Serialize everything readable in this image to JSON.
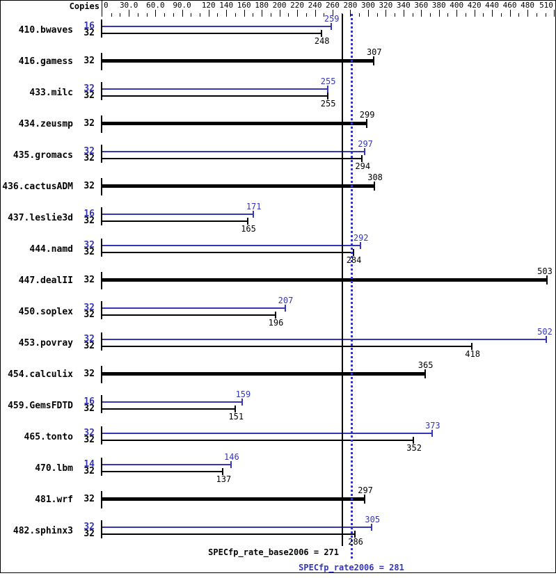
{
  "chart_data": {
    "type": "bar",
    "orientation": "horizontal",
    "copies_header": "Copies",
    "colors": {
      "peak": "#3535bb",
      "base": "#000000"
    },
    "axis": {
      "min": 0,
      "max": 510,
      "minor_tick_step": 10,
      "major_labels": [
        {
          "v": 0,
          "label": "0"
        },
        {
          "v": 30,
          "label": "30.0"
        },
        {
          "v": 60,
          "label": "60.0"
        },
        {
          "v": 90,
          "label": "90.0"
        },
        {
          "v": 120,
          "label": "120"
        },
        {
          "v": 140,
          "label": "140"
        },
        {
          "v": 160,
          "label": "160"
        },
        {
          "v": 180,
          "label": "180"
        },
        {
          "v": 200,
          "label": "200"
        },
        {
          "v": 220,
          "label": "220"
        },
        {
          "v": 240,
          "label": "240"
        },
        {
          "v": 260,
          "label": "260"
        },
        {
          "v": 280,
          "label": "280"
        },
        {
          "v": 300,
          "label": "300"
        },
        {
          "v": 320,
          "label": "320"
        },
        {
          "v": 340,
          "label": "340"
        },
        {
          "v": 360,
          "label": "360"
        },
        {
          "v": 380,
          "label": "380"
        },
        {
          "v": 400,
          "label": "400"
        },
        {
          "v": 420,
          "label": "420"
        },
        {
          "v": 440,
          "label": "440"
        },
        {
          "v": 460,
          "label": "460"
        },
        {
          "v": 480,
          "label": "480"
        },
        {
          "v": 510,
          "label": "510"
        }
      ]
    },
    "benchmarks": [
      {
        "name": "410.bwaves",
        "runs": [
          {
            "type": "peak",
            "copies": 16,
            "value": 259
          },
          {
            "type": "base",
            "copies": 32,
            "value": 248
          }
        ]
      },
      {
        "name": "416.gamess",
        "runs": [
          {
            "type": "base",
            "copies": 32,
            "value": 307
          }
        ]
      },
      {
        "name": "433.milc",
        "runs": [
          {
            "type": "peak",
            "copies": 32,
            "value": 255
          },
          {
            "type": "base",
            "copies": 32,
            "value": 255
          }
        ]
      },
      {
        "name": "434.zeusmp",
        "runs": [
          {
            "type": "base",
            "copies": 32,
            "value": 299
          }
        ]
      },
      {
        "name": "435.gromacs",
        "runs": [
          {
            "type": "peak",
            "copies": 32,
            "value": 297
          },
          {
            "type": "base",
            "copies": 32,
            "value": 294
          }
        ]
      },
      {
        "name": "436.cactusADM",
        "runs": [
          {
            "type": "base",
            "copies": 32,
            "value": 308
          }
        ]
      },
      {
        "name": "437.leslie3d",
        "runs": [
          {
            "type": "peak",
            "copies": 16,
            "value": 171
          },
          {
            "type": "base",
            "copies": 32,
            "value": 165
          }
        ]
      },
      {
        "name": "444.namd",
        "runs": [
          {
            "type": "peak",
            "copies": 32,
            "value": 292
          },
          {
            "type": "base",
            "copies": 32,
            "value": 284
          }
        ]
      },
      {
        "name": "447.dealII",
        "runs": [
          {
            "type": "base",
            "copies": 32,
            "value": 503
          }
        ]
      },
      {
        "name": "450.soplex",
        "runs": [
          {
            "type": "peak",
            "copies": 32,
            "value": 207
          },
          {
            "type": "base",
            "copies": 32,
            "value": 196
          }
        ]
      },
      {
        "name": "453.povray",
        "runs": [
          {
            "type": "peak",
            "copies": 32,
            "value": 502
          },
          {
            "type": "base",
            "copies": 32,
            "value": 418
          }
        ]
      },
      {
        "name": "454.calculix",
        "runs": [
          {
            "type": "base",
            "copies": 32,
            "value": 365
          }
        ]
      },
      {
        "name": "459.GemsFDTD",
        "runs": [
          {
            "type": "peak",
            "copies": 16,
            "value": 159
          },
          {
            "type": "base",
            "copies": 32,
            "value": 151
          }
        ]
      },
      {
        "name": "465.tonto",
        "runs": [
          {
            "type": "peak",
            "copies": 32,
            "value": 373
          },
          {
            "type": "base",
            "copies": 32,
            "value": 352
          }
        ]
      },
      {
        "name": "470.lbm",
        "runs": [
          {
            "type": "peak",
            "copies": 14,
            "value": 146
          },
          {
            "type": "base",
            "copies": 32,
            "value": 137
          }
        ]
      },
      {
        "name": "481.wrf",
        "runs": [
          {
            "type": "base",
            "copies": 32,
            "value": 297
          }
        ]
      },
      {
        "name": "482.sphinx3",
        "runs": [
          {
            "type": "peak",
            "copies": 32,
            "value": 305
          },
          {
            "type": "base",
            "copies": 32,
            "value": 286
          }
        ]
      }
    ],
    "reference_lines": [
      {
        "name": "base",
        "label": "SPECfp_rate_base2006 = 271",
        "value": 271,
        "style": "solid",
        "color": "#000000"
      },
      {
        "name": "peak",
        "label": "SPECfp_rate2006 = 281",
        "value": 281,
        "style": "dotted",
        "color": "#3535bb"
      }
    ]
  }
}
